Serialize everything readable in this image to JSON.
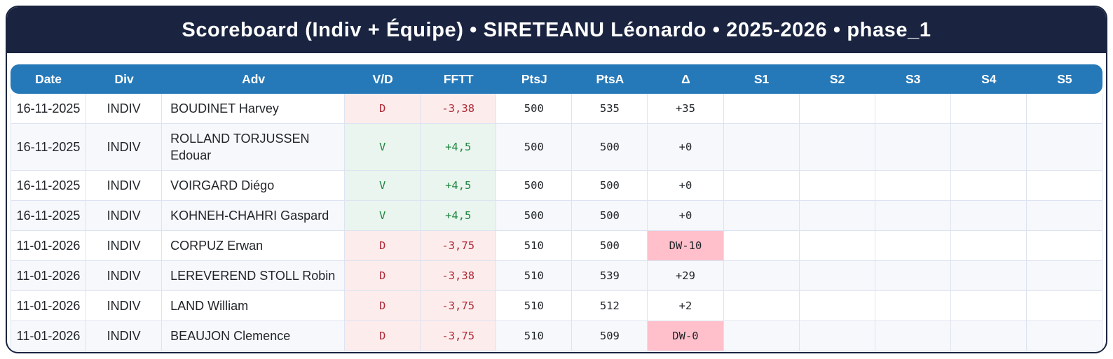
{
  "title": "Scoreboard (Indiv + Équipe) • SIRETEANU Léonardo • 2025-2026 • phase_1",
  "colors": {
    "navy": "#1a2440",
    "header_blue": "#2679b8",
    "stripe": "#f6f8fc",
    "grid": "#dde3f0",
    "text": "#212529",
    "win_bg": "#e9f5ee",
    "win_text": "#218540",
    "loss_bg": "#fdecec",
    "loss_text": "#b02a37",
    "alert_bg": "#ffc0cb"
  },
  "table": {
    "columns": [
      {
        "key": "date",
        "label": "Date"
      },
      {
        "key": "div",
        "label": "Div"
      },
      {
        "key": "adv",
        "label": "Adv"
      },
      {
        "key": "vd",
        "label": "V/D"
      },
      {
        "key": "fftt",
        "label": "FFTT"
      },
      {
        "key": "ptsj",
        "label": "PtsJ"
      },
      {
        "key": "ptsa",
        "label": "PtsA"
      },
      {
        "key": "delta",
        "label": "Δ"
      },
      {
        "key": "s1",
        "label": "S1"
      },
      {
        "key": "s2",
        "label": "S2"
      },
      {
        "key": "s3",
        "label": "S3"
      },
      {
        "key": "s4",
        "label": "S4"
      },
      {
        "key": "s5",
        "label": "S5"
      }
    ],
    "rows": [
      {
        "date": "16-11-2025",
        "div": "INDIV",
        "adv": "BOUDINET Harvey",
        "vd": "D",
        "fftt": "-3,38",
        "ptsj": "500",
        "ptsa": "535",
        "delta": "+35",
        "result": "loss",
        "delta_alert": false,
        "s1": "",
        "s2": "",
        "s3": "",
        "s4": "",
        "s5": ""
      },
      {
        "date": "16-11-2025",
        "div": "INDIV",
        "adv": "ROLLAND TORJUSSEN Edouar",
        "vd": "V",
        "fftt": "+4,5",
        "ptsj": "500",
        "ptsa": "500",
        "delta": "+0",
        "result": "win",
        "delta_alert": false,
        "s1": "",
        "s2": "",
        "s3": "",
        "s4": "",
        "s5": ""
      },
      {
        "date": "16-11-2025",
        "div": "INDIV",
        "adv": "VOIRGARD Diégo",
        "vd": "V",
        "fftt": "+4,5",
        "ptsj": "500",
        "ptsa": "500",
        "delta": "+0",
        "result": "win",
        "delta_alert": false,
        "s1": "",
        "s2": "",
        "s3": "",
        "s4": "",
        "s5": ""
      },
      {
        "date": "16-11-2025",
        "div": "INDIV",
        "adv": "KOHNEH-CHAHRI Gaspard",
        "vd": "V",
        "fftt": "+4,5",
        "ptsj": "500",
        "ptsa": "500",
        "delta": "+0",
        "result": "win",
        "delta_alert": false,
        "s1": "",
        "s2": "",
        "s3": "",
        "s4": "",
        "s5": ""
      },
      {
        "date": "11-01-2026",
        "div": "INDIV",
        "adv": "CORPUZ Erwan",
        "vd": "D",
        "fftt": "-3,75",
        "ptsj": "510",
        "ptsa": "500",
        "delta": "DW-10",
        "result": "loss",
        "delta_alert": true,
        "s1": "",
        "s2": "",
        "s3": "",
        "s4": "",
        "s5": ""
      },
      {
        "date": "11-01-2026",
        "div": "INDIV",
        "adv": "LEREVEREND STOLL Robin",
        "vd": "D",
        "fftt": "-3,38",
        "ptsj": "510",
        "ptsa": "539",
        "delta": "+29",
        "result": "loss",
        "delta_alert": false,
        "s1": "",
        "s2": "",
        "s3": "",
        "s4": "",
        "s5": ""
      },
      {
        "date": "11-01-2026",
        "div": "INDIV",
        "adv": "LAND William",
        "vd": "D",
        "fftt": "-3,75",
        "ptsj": "510",
        "ptsa": "512",
        "delta": "+2",
        "result": "loss",
        "delta_alert": false,
        "s1": "",
        "s2": "",
        "s3": "",
        "s4": "",
        "s5": ""
      },
      {
        "date": "11-01-2026",
        "div": "INDIV",
        "adv": "BEAUJON Clemence",
        "vd": "D",
        "fftt": "-3,75",
        "ptsj": "510",
        "ptsa": "509",
        "delta": "DW-0",
        "result": "loss",
        "delta_alert": true,
        "s1": "",
        "s2": "",
        "s3": "",
        "s4": "",
        "s5": ""
      }
    ]
  }
}
